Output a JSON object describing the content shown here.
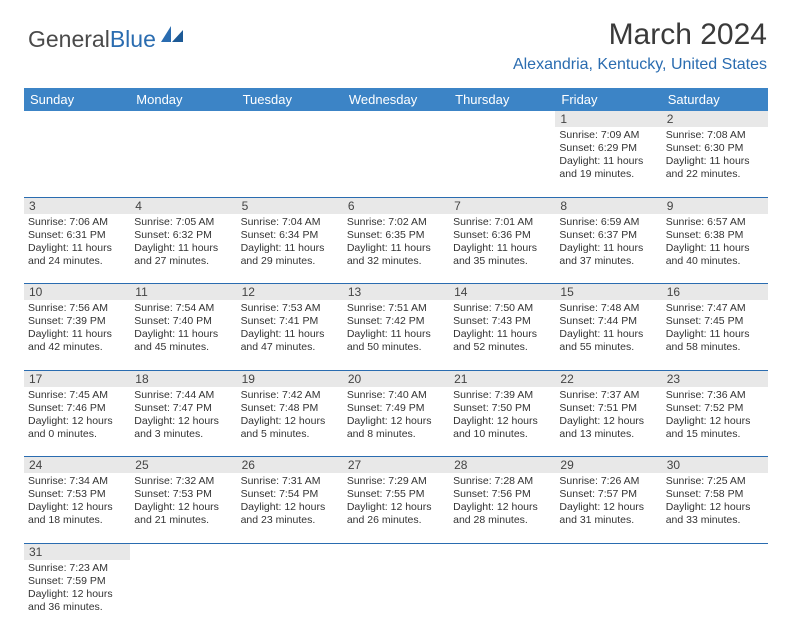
{
  "logo": {
    "text_dark": "General",
    "text_blue": "Blue"
  },
  "title": "March 2024",
  "location": "Alexandria, Kentucky, United States",
  "colors": {
    "header_bg": "#3c84c6",
    "header_text": "#ffffff",
    "daynum_bg": "#e8e8e8",
    "border": "#2a6cb0",
    "logo_blue": "#2a6cb0",
    "text": "#333333"
  },
  "weekdays": [
    "Sunday",
    "Monday",
    "Tuesday",
    "Wednesday",
    "Thursday",
    "Friday",
    "Saturday"
  ],
  "weeks": [
    [
      null,
      null,
      null,
      null,
      null,
      {
        "n": "1",
        "sr": "7:09 AM",
        "ss": "6:29 PM",
        "dl": "11 hours and 19 minutes."
      },
      {
        "n": "2",
        "sr": "7:08 AM",
        "ss": "6:30 PM",
        "dl": "11 hours and 22 minutes."
      }
    ],
    [
      {
        "n": "3",
        "sr": "7:06 AM",
        "ss": "6:31 PM",
        "dl": "11 hours and 24 minutes."
      },
      {
        "n": "4",
        "sr": "7:05 AM",
        "ss": "6:32 PM",
        "dl": "11 hours and 27 minutes."
      },
      {
        "n": "5",
        "sr": "7:04 AM",
        "ss": "6:34 PM",
        "dl": "11 hours and 29 minutes."
      },
      {
        "n": "6",
        "sr": "7:02 AM",
        "ss": "6:35 PM",
        "dl": "11 hours and 32 minutes."
      },
      {
        "n": "7",
        "sr": "7:01 AM",
        "ss": "6:36 PM",
        "dl": "11 hours and 35 minutes."
      },
      {
        "n": "8",
        "sr": "6:59 AM",
        "ss": "6:37 PM",
        "dl": "11 hours and 37 minutes."
      },
      {
        "n": "9",
        "sr": "6:57 AM",
        "ss": "6:38 PM",
        "dl": "11 hours and 40 minutes."
      }
    ],
    [
      {
        "n": "10",
        "sr": "7:56 AM",
        "ss": "7:39 PM",
        "dl": "11 hours and 42 minutes."
      },
      {
        "n": "11",
        "sr": "7:54 AM",
        "ss": "7:40 PM",
        "dl": "11 hours and 45 minutes."
      },
      {
        "n": "12",
        "sr": "7:53 AM",
        "ss": "7:41 PM",
        "dl": "11 hours and 47 minutes."
      },
      {
        "n": "13",
        "sr": "7:51 AM",
        "ss": "7:42 PM",
        "dl": "11 hours and 50 minutes."
      },
      {
        "n": "14",
        "sr": "7:50 AM",
        "ss": "7:43 PM",
        "dl": "11 hours and 52 minutes."
      },
      {
        "n": "15",
        "sr": "7:48 AM",
        "ss": "7:44 PM",
        "dl": "11 hours and 55 minutes."
      },
      {
        "n": "16",
        "sr": "7:47 AM",
        "ss": "7:45 PM",
        "dl": "11 hours and 58 minutes."
      }
    ],
    [
      {
        "n": "17",
        "sr": "7:45 AM",
        "ss": "7:46 PM",
        "dl": "12 hours and 0 minutes."
      },
      {
        "n": "18",
        "sr": "7:44 AM",
        "ss": "7:47 PM",
        "dl": "12 hours and 3 minutes."
      },
      {
        "n": "19",
        "sr": "7:42 AM",
        "ss": "7:48 PM",
        "dl": "12 hours and 5 minutes."
      },
      {
        "n": "20",
        "sr": "7:40 AM",
        "ss": "7:49 PM",
        "dl": "12 hours and 8 minutes."
      },
      {
        "n": "21",
        "sr": "7:39 AM",
        "ss": "7:50 PM",
        "dl": "12 hours and 10 minutes."
      },
      {
        "n": "22",
        "sr": "7:37 AM",
        "ss": "7:51 PM",
        "dl": "12 hours and 13 minutes."
      },
      {
        "n": "23",
        "sr": "7:36 AM",
        "ss": "7:52 PM",
        "dl": "12 hours and 15 minutes."
      }
    ],
    [
      {
        "n": "24",
        "sr": "7:34 AM",
        "ss": "7:53 PM",
        "dl": "12 hours and 18 minutes."
      },
      {
        "n": "25",
        "sr": "7:32 AM",
        "ss": "7:53 PM",
        "dl": "12 hours and 21 minutes."
      },
      {
        "n": "26",
        "sr": "7:31 AM",
        "ss": "7:54 PM",
        "dl": "12 hours and 23 minutes."
      },
      {
        "n": "27",
        "sr": "7:29 AM",
        "ss": "7:55 PM",
        "dl": "12 hours and 26 minutes."
      },
      {
        "n": "28",
        "sr": "7:28 AM",
        "ss": "7:56 PM",
        "dl": "12 hours and 28 minutes."
      },
      {
        "n": "29",
        "sr": "7:26 AM",
        "ss": "7:57 PM",
        "dl": "12 hours and 31 minutes."
      },
      {
        "n": "30",
        "sr": "7:25 AM",
        "ss": "7:58 PM",
        "dl": "12 hours and 33 minutes."
      }
    ],
    [
      {
        "n": "31",
        "sr": "7:23 AM",
        "ss": "7:59 PM",
        "dl": "12 hours and 36 minutes."
      },
      null,
      null,
      null,
      null,
      null,
      null
    ]
  ],
  "labels": {
    "sunrise": "Sunrise: ",
    "sunset": "Sunset: ",
    "daylight": "Daylight: "
  }
}
